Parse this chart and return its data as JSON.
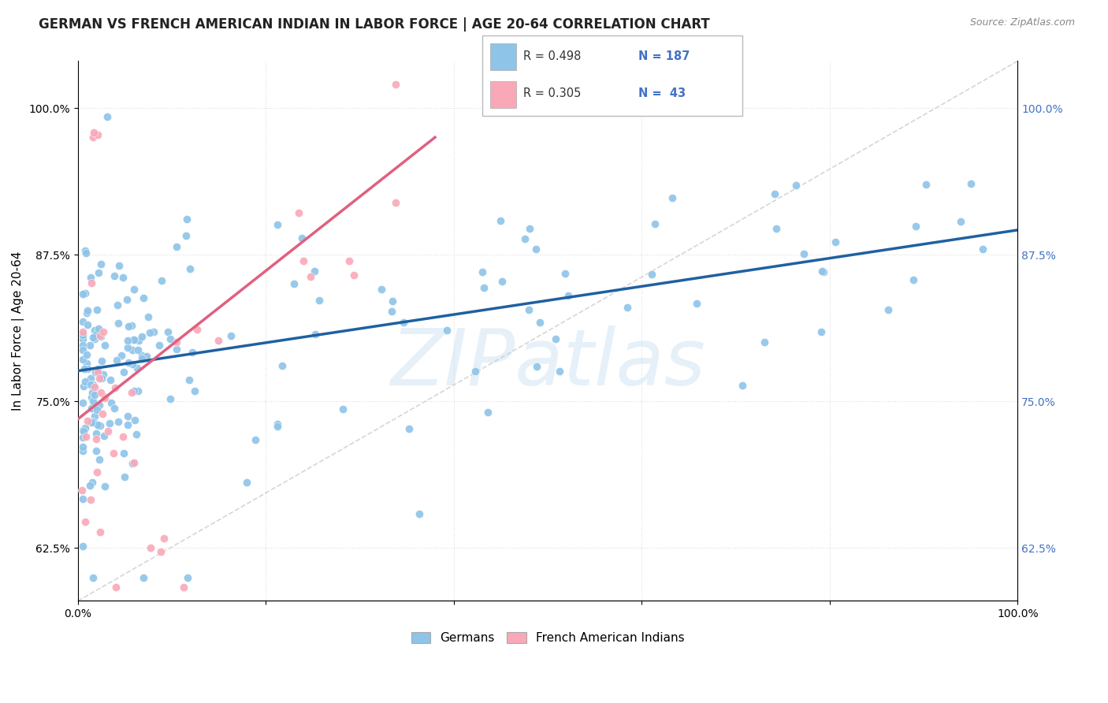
{
  "title": "GERMAN VS FRENCH AMERICAN INDIAN IN LABOR FORCE | AGE 20-64 CORRELATION CHART",
  "source": "Source: ZipAtlas.com",
  "ylabel": "In Labor Force | Age 20-64",
  "xlim": [
    0.0,
    1.0
  ],
  "ylim": [
    0.58,
    1.04
  ],
  "yticks": [
    0.625,
    0.75,
    0.875,
    1.0
  ],
  "ytick_labels": [
    "62.5%",
    "75.0%",
    "87.5%",
    "100.0%"
  ],
  "xticks": [
    0.0,
    0.2,
    0.4,
    0.6,
    0.8,
    1.0
  ],
  "xtick_labels": [
    "0.0%",
    "",
    "",
    "",
    "",
    "100.0%"
  ],
  "blue_R": 0.498,
  "blue_N": 187,
  "pink_R": 0.305,
  "pink_N": 43,
  "blue_color": "#8ec4e8",
  "pink_color": "#f9a8b8",
  "blue_line_color": "#2060a0",
  "pink_line_color": "#e06080",
  "diagonal_color": "#cccccc",
  "background_color": "#ffffff",
  "legend_blue_label": "Germans",
  "legend_pink_label": "French American Indians",
  "title_fontsize": 12,
  "axis_label_fontsize": 11,
  "tick_fontsize": 10,
  "right_tick_color": "#4472c4",
  "blue_trend_x": [
    0.0,
    1.0
  ],
  "blue_trend_y": [
    0.776,
    0.896
  ],
  "pink_trend_x": [
    0.0,
    0.38
  ],
  "pink_trend_y": [
    0.735,
    0.975
  ]
}
